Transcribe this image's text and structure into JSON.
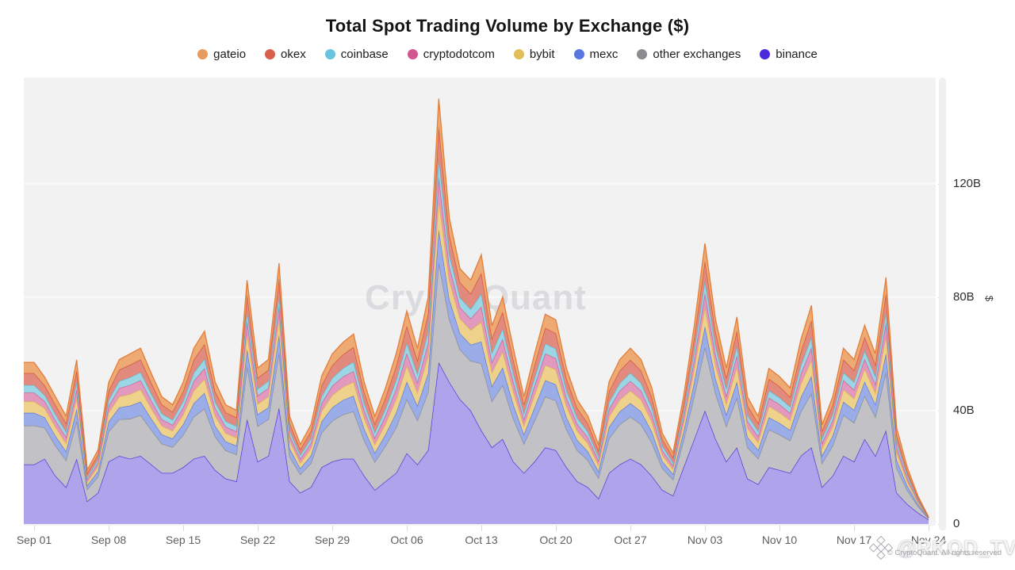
{
  "title": "Total Spot Trading Volume by Exchange ($)",
  "legend": [
    {
      "label": "gateio",
      "color": "#E89A5F"
    },
    {
      "label": "okex",
      "color": "#D8604C"
    },
    {
      "label": "coinbase",
      "color": "#69C4DD"
    },
    {
      "label": "cryptodotcom",
      "color": "#D2568F"
    },
    {
      "label": "bybit",
      "color": "#E2BE58"
    },
    {
      "label": "mexc",
      "color": "#5977DF"
    },
    {
      "label": "other exchanges",
      "color": "#8B8B92"
    },
    {
      "label": "binance",
      "color": "#4B2ADB"
    }
  ],
  "axis": {
    "unit_symbol": "$"
  },
  "watermarks": {
    "center": "CryptoQuant",
    "handle": "@RKOD_TV",
    "copyright": "© CryptoQuant. All rights reserved"
  },
  "chart_data": {
    "type": "area",
    "stacked": true,
    "title": "Total Spot Trading Volume by Exchange ($)",
    "unit": "billions USD",
    "ylim": [
      0,
      157
    ],
    "grid": "horizontal",
    "legend_position": "top",
    "y_ticks": [
      0,
      40,
      80,
      120
    ],
    "y_tick_labels": [
      "0",
      "40B",
      "80B",
      "120B"
    ],
    "x_tick_indices": [
      0,
      7,
      14,
      21,
      28,
      35,
      42,
      49,
      56,
      63,
      70,
      77,
      84
    ],
    "x_tick_labels": [
      "Sep 01",
      "Sep 08",
      "Sep 15",
      "Sep 22",
      "Sep 29",
      "Oct 06",
      "Oct 13",
      "Oct 20",
      "Oct 27",
      "Nov 03",
      "Nov 10",
      "Nov 17",
      "Nov 24"
    ],
    "x": [
      "Sep 01",
      "Sep 02",
      "Sep 03",
      "Sep 04",
      "Sep 05",
      "Sep 06",
      "Sep 07",
      "Sep 08",
      "Sep 09",
      "Sep 10",
      "Sep 11",
      "Sep 12",
      "Sep 13",
      "Sep 14",
      "Sep 15",
      "Sep 16",
      "Sep 17",
      "Sep 18",
      "Sep 19",
      "Sep 20",
      "Sep 21",
      "Sep 22",
      "Sep 23",
      "Sep 24",
      "Sep 25",
      "Sep 26",
      "Sep 27",
      "Sep 28",
      "Sep 29",
      "Sep 30",
      "Oct 01",
      "Oct 02",
      "Oct 03",
      "Oct 04",
      "Oct 05",
      "Oct 06",
      "Oct 07",
      "Oct 08",
      "Oct 09",
      "Oct 10",
      "Oct 11",
      "Oct 12",
      "Oct 13",
      "Oct 14",
      "Oct 15",
      "Oct 16",
      "Oct 17",
      "Oct 18",
      "Oct 19",
      "Oct 20",
      "Oct 21",
      "Oct 22",
      "Oct 23",
      "Oct 24",
      "Oct 25",
      "Oct 26",
      "Oct 27",
      "Oct 28",
      "Oct 29",
      "Oct 30",
      "Oct 31",
      "Nov 01",
      "Nov 02",
      "Nov 03",
      "Nov 04",
      "Nov 05",
      "Nov 06",
      "Nov 07",
      "Nov 08",
      "Nov 09",
      "Nov 10",
      "Nov 11",
      "Nov 12",
      "Nov 13",
      "Nov 14",
      "Nov 15",
      "Nov 16",
      "Nov 17",
      "Nov 18",
      "Nov 19",
      "Nov 20",
      "Nov 21",
      "Nov 22",
      "Nov 23",
      "Nov 24"
    ],
    "series": [
      {
        "name": "binance",
        "fill": "#AB9FEA",
        "stroke": "#4326DC",
        "values": [
          21,
          23,
          17,
          13,
          23,
          8,
          11,
          22,
          24,
          23,
          24,
          21,
          18,
          18,
          20,
          23,
          24,
          19,
          16,
          15,
          37,
          22,
          24,
          41,
          15,
          11,
          13,
          20,
          22,
          23,
          23,
          17,
          12,
          15,
          18,
          25,
          21,
          26,
          57,
          50,
          44,
          40,
          33,
          27,
          30,
          22,
          18,
          22,
          27,
          26,
          20,
          15,
          13,
          9,
          18,
          21,
          23,
          21,
          17,
          12,
          10,
          20,
          30,
          40,
          30,
          22,
          27,
          16,
          14,
          20,
          19,
          18,
          24,
          27,
          13,
          17,
          24,
          22,
          30,
          24,
          33,
          11,
          7,
          4,
          1.5
        ]
      },
      {
        "name": "other exchanges",
        "fill": "#BFBFC3",
        "stroke": "#87878D",
        "values": [
          13.7,
          11,
          10.6,
          9.5,
          13.3,
          4.2,
          5.7,
          10.6,
          12.9,
          14.1,
          14.4,
          12.2,
          10.3,
          9.1,
          11.4,
          14.8,
          16.7,
          11.8,
          9.9,
          9.5,
          18.6,
          12.5,
          12.9,
          19.4,
          8.7,
          6.5,
          8.4,
          12.2,
          14.4,
          15.6,
          16.7,
          12.5,
          9.9,
          12.5,
          16,
          19,
          15.6,
          20.5,
          35.3,
          22,
          17.5,
          17.5,
          23.6,
          16.3,
          19,
          15.2,
          10.3,
          14.4,
          17.9,
          17.5,
          13.3,
          11,
          9.5,
          7.2,
          12.2,
          14.1,
          14.8,
          14.1,
          11.8,
          7.6,
          5.7,
          9.5,
          15.2,
          22.4,
          16,
          12.5,
          17.5,
          11,
          9.1,
          13.3,
          12.5,
          11.4,
          15.6,
          19,
          8.4,
          10.6,
          14.4,
          13.7,
          15.2,
          13.7,
          20.5,
          8.7,
          4.9,
          2.3,
          0.4
        ]
      },
      {
        "name": "mexc",
        "fill": "#96A9E7",
        "stroke": "#5272D8",
        "values": [
          4.5,
          3.6,
          3.5,
          3.1,
          4.3,
          1.4,
          1.9,
          3.5,
          4.2,
          4.6,
          4.7,
          4,
          3.3,
          3,
          3.7,
          4.8,
          5.5,
          3.8,
          3.2,
          3.1,
          6.1,
          4.1,
          4.2,
          6.3,
          2.9,
          2.1,
          2.7,
          4,
          4.7,
          5.1,
          5.5,
          4.1,
          3.2,
          4.1,
          5.2,
          6.2,
          5.1,
          6.7,
          11.5,
          7.2,
          5.7,
          5.7,
          7.7,
          5.3,
          6.2,
          5,
          3.3,
          4.7,
          5.8,
          5.7,
          4.3,
          3.6,
          3.1,
          2.4,
          4,
          4.6,
          4.8,
          4.6,
          3.8,
          2.5,
          1.9,
          3.1,
          5,
          7.3,
          5.2,
          4.1,
          5.7,
          3.6,
          3,
          4.3,
          4.1,
          3.7,
          5.1,
          6.2,
          2.7,
          3.5,
          4.7,
          4.5,
          5,
          4.5,
          6.7,
          2.9,
          1.6,
          0.7,
          0.1
        ]
      },
      {
        "name": "bybit",
        "fill": "#EDD085",
        "stroke": "#DFB646",
        "values": [
          4,
          3.2,
          3.1,
          2.8,
          3.9,
          1.2,
          1.7,
          3.1,
          3.8,
          4.1,
          4.3,
          3.6,
          3,
          2.7,
          3.4,
          4.4,
          4.9,
          3.5,
          2.9,
          2.8,
          5.5,
          3.7,
          3.8,
          5.7,
          2.6,
          1.9,
          2.5,
          3.6,
          4.3,
          4.6,
          4.9,
          3.7,
          2.9,
          3.7,
          4.7,
          5.6,
          4.6,
          6,
          10.4,
          6.5,
          5.2,
          5.2,
          6.9,
          4.8,
          5.6,
          4.5,
          3,
          4.3,
          5.3,
          5.2,
          3.9,
          3.2,
          2.8,
          2.1,
          3.6,
          4.1,
          4.4,
          4.1,
          3.5,
          2.2,
          1.7,
          2.8,
          4.5,
          6.6,
          4.7,
          3.7,
          5.2,
          3.2,
          2.7,
          3.9,
          3.7,
          3.4,
          4.6,
          5.6,
          2.5,
          3.1,
          4.3,
          4,
          4.5,
          4,
          6,
          2.6,
          1.5,
          0.7,
          0.1
        ]
      },
      {
        "name": "cryptodotcom",
        "fill": "#E094BA",
        "stroke": "#CE5490",
        "values": [
          3.1,
          2.5,
          2.4,
          2.2,
          3,
          1,
          1.3,
          2.4,
          3,
          3.2,
          3.3,
          2.8,
          2.3,
          2.1,
          2.6,
          3.4,
          3.8,
          2.7,
          2.3,
          2.2,
          4.3,
          2.9,
          3,
          4.4,
          2,
          1.5,
          1.9,
          2.8,
          3.3,
          3.6,
          3.8,
          2.9,
          2.3,
          2.9,
          3.7,
          4.4,
          3.6,
          4.7,
          8.1,
          5,
          4,
          4,
          5.4,
          3.7,
          4.4,
          3.5,
          2.3,
          3.3,
          4.1,
          4,
          3,
          2.5,
          2.2,
          1.7,
          2.8,
          3.2,
          3.4,
          3.2,
          2.7,
          1.7,
          1.3,
          2.2,
          3.5,
          5.1,
          3.7,
          2.9,
          4,
          2.5,
          2.1,
          3,
          2.9,
          2.6,
          3.6,
          4.4,
          1.9,
          2.4,
          3.3,
          3.1,
          3.5,
          3.1,
          4.7,
          2,
          1.1,
          0.5,
          0.1
        ]
      },
      {
        "name": "coinbase",
        "fill": "#97D3E3",
        "stroke": "#57BBD4",
        "values": [
          2.7,
          2.1,
          2.1,
          1.9,
          2.6,
          0.8,
          1.1,
          2.1,
          2.5,
          2.7,
          2.8,
          2.4,
          2,
          1.8,
          2.2,
          2.9,
          3.3,
          2.3,
          1.9,
          1.9,
          3.6,
          2.4,
          2.5,
          3.8,
          1.7,
          1.3,
          1.6,
          2.4,
          2.8,
          3,
          3.3,
          2.4,
          1.9,
          2.4,
          3.1,
          3.7,
          3,
          4,
          6.9,
          4.3,
          3.4,
          3.4,
          4.6,
          3.2,
          3.7,
          3,
          2,
          2.8,
          3.5,
          3.4,
          2.6,
          2.1,
          1.9,
          1.4,
          2.4,
          2.7,
          2.9,
          2.7,
          2.3,
          1.5,
          1.1,
          1.9,
          3,
          4.4,
          3.1,
          2.4,
          3.4,
          2.1,
          1.8,
          2.6,
          2.4,
          2.2,
          3,
          3.7,
          1.6,
          2.1,
          2.8,
          2.7,
          3,
          2.7,
          4,
          1.7,
          1,
          0.4,
          0.1
        ]
      },
      {
        "name": "okex",
        "fill": "#E08476",
        "stroke": "#CE4C38",
        "values": [
          4.2,
          3.4,
          3.3,
          3,
          4.1,
          1.3,
          1.8,
          3.3,
          4,
          4.4,
          4.5,
          3.8,
          3.2,
          2.8,
          3.5,
          4.6,
          5.2,
          3.7,
          3.1,
          3,
          5.8,
          3.9,
          4,
          6,
          2.7,
          2,
          2.6,
          3.8,
          4.5,
          4.8,
          5.2,
          3.9,
          3.1,
          3.9,
          5,
          5.9,
          4.8,
          6.4,
          11,
          6.8,
          5.4,
          5.4,
          7.3,
          5.1,
          5.9,
          4.7,
          3.2,
          4.5,
          5.5,
          5.4,
          4.1,
          3.4,
          3,
          2.2,
          3.8,
          4.4,
          4.6,
          4.4,
          3.7,
          2.4,
          1.8,
          3,
          4.7,
          7,
          5,
          3.9,
          5.4,
          3.4,
          2.8,
          4.1,
          3.9,
          3.5,
          4.8,
          5.9,
          2.6,
          3.3,
          4.5,
          4.2,
          4.7,
          4.2,
          6.4,
          2.7,
          1.5,
          0.7,
          0.1
        ]
      },
      {
        "name": "gateio",
        "fill": "#EDA56C",
        "stroke": "#E2762F",
        "values": [
          3.8,
          3,
          2.9,
          2.6,
          3.7,
          1.2,
          1.6,
          2.9,
          3.6,
          3.9,
          4,
          3.4,
          2.8,
          2.5,
          3.2,
          4.1,
          4.6,
          3.3,
          2.7,
          2.6,
          5.1,
          3.5,
          3.6,
          5.4,
          2.4,
          1.8,
          2.3,
          3.4,
          4,
          4.3,
          4.6,
          3.5,
          2.7,
          3.5,
          4.4,
          5.3,
          4.3,
          5.7,
          9.8,
          6.1,
          4.8,
          4.8,
          6.5,
          4.5,
          5.3,
          4.2,
          2.8,
          4,
          4.9,
          4.8,
          3.7,
          3,
          2.6,
          2,
          3.4,
          3.9,
          4.1,
          3.9,
          3.3,
          2.1,
          1.6,
          2.6,
          4.2,
          6.2,
          4.4,
          3.5,
          4.8,
          3,
          2.5,
          3.7,
          3.5,
          3.2,
          4.3,
          5.3,
          2.3,
          2.9,
          4,
          3.8,
          4.2,
          3.8,
          5.7,
          2.4,
          1.4,
          0.6,
          0.1
        ]
      }
    ]
  }
}
